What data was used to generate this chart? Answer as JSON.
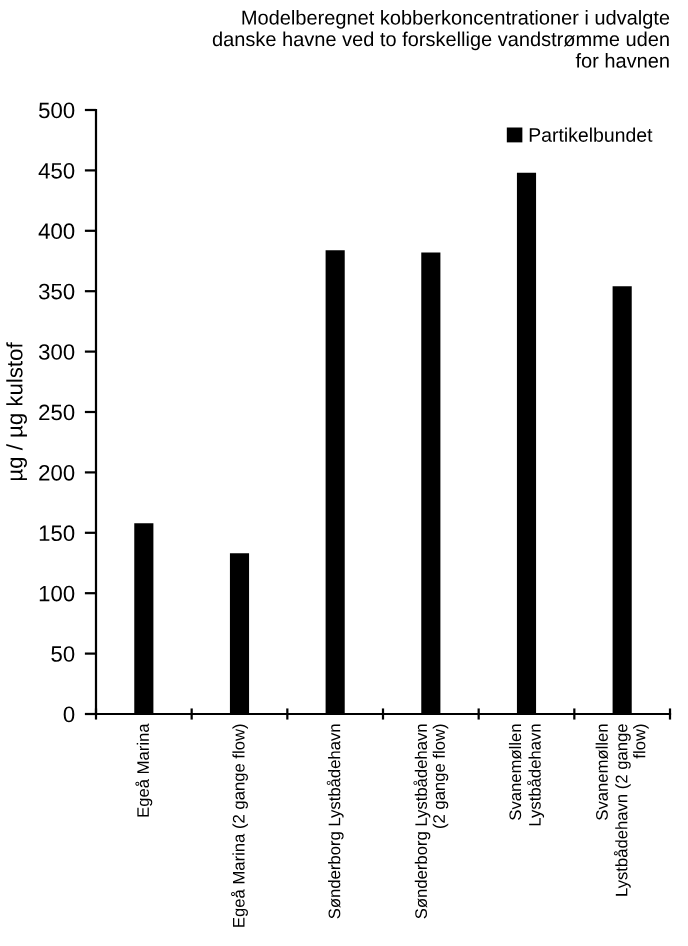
{
  "chart_data": {
    "type": "bar",
    "title": "Modelberegnet kobberkoncentrationer i udvalgte\ndanske havne ved to forskellige vandstrømme uden\nfor havnen",
    "ylabel": "µg / µg kulstof",
    "categories": [
      "Egeå Marina",
      "Egeå Marina (2 gange flow)",
      "Sønderborg Lystbådehavn",
      "Sønderborg Lystbådehavn\n(2 gange flow)",
      "Svanemøllen\nLystbådehavn",
      "Svanemøllen\nLystbådehavn (2 gange\nflow)"
    ],
    "series": [
      {
        "name": "Partikelbundet",
        "color": "#000000",
        "values": [
          158,
          133,
          384,
          382,
          448,
          354
        ]
      }
    ],
    "ylim": [
      0,
      500
    ],
    "yticks": [
      0,
      50,
      100,
      150,
      200,
      250,
      300,
      350,
      400,
      450,
      500
    ],
    "grid": false,
    "legend": "top right"
  }
}
